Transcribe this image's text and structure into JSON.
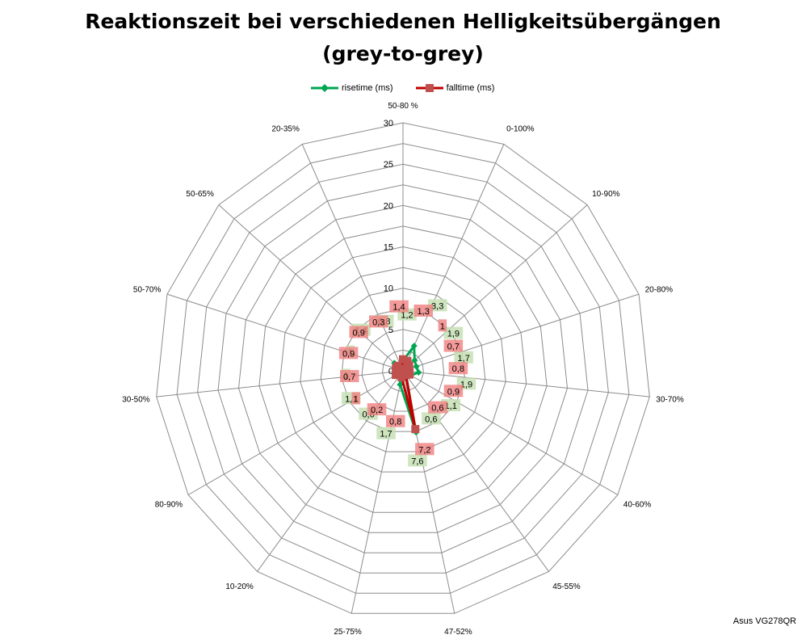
{
  "chart_data": {
    "type": "radar",
    "title": "Reaktionszeit bei verschiedenen Helligkeitsübergängen",
    "subtitle": "(grey-to-grey)",
    "categories": [
      "50-80 %",
      "0-100%",
      "10-90%",
      "20-80%",
      "30-70%",
      "40-60%",
      "45-55%",
      "47-52%",
      "25-75%",
      "10-20%",
      "80-90%",
      "30-50%",
      "50-70%",
      "50-65%",
      "20-35%"
    ],
    "rlim": [
      0,
      30
    ],
    "ticks": [
      "0",
      "5",
      "10",
      "15",
      "20",
      "25",
      "30"
    ],
    "grid": true,
    "legend_position": "top",
    "series": [
      {
        "name": "risetime (ms)",
        "color": "#00a651",
        "label_bg": "#c6e0b4",
        "values": [
          1.2,
          3.3,
          1.9,
          1.7,
          1.9,
          1.1,
          0.6,
          7.6,
          1.7,
          0.6,
          1.1,
          1.0,
          1.0,
          1.4,
          0.8
        ],
        "labels": [
          "1,2",
          "3,3",
          "1,9",
          "1,7",
          "1,9",
          "1,1",
          "0,6",
          "7,6",
          "1,7",
          "0,6",
          "1,1",
          "1",
          "1",
          "1,4",
          "0,8"
        ]
      },
      {
        "name": "falltime (ms)",
        "color": "#c0504d",
        "label_bg": "#f08080",
        "values": [
          1.4,
          1.3,
          1.0,
          0.7,
          0.8,
          0.9,
          0.6,
          7.2,
          0.8,
          0.2,
          1.0,
          0.7,
          0.9,
          0.9,
          0.3
        ],
        "labels": [
          "1,4",
          "1,3",
          "1",
          "0,7",
          "0,8",
          "0,9",
          "0,6",
          "7,2",
          "0,8",
          "0,2",
          "1",
          "0,7",
          "0,9",
          "0,9",
          "0,3"
        ]
      }
    ]
  },
  "credit": "Asus VG278QR"
}
